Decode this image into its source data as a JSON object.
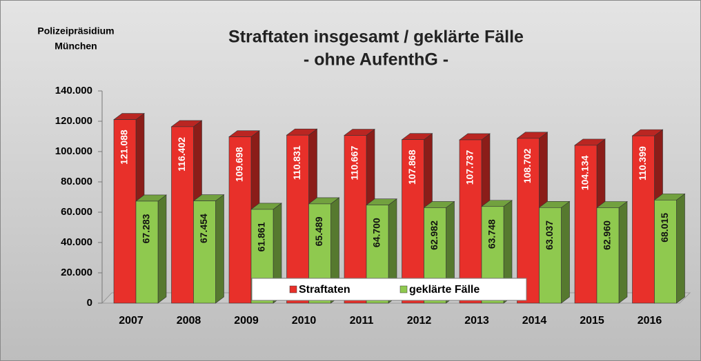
{
  "chart_data": {
    "type": "bar",
    "title": "Straftaten insgesamt / geklärte Fälle",
    "subtitle": "- ohne AufenthG -",
    "annotation": [
      "Polizeipräsidium",
      "München"
    ],
    "categories": [
      "2007",
      "2008",
      "2009",
      "2010",
      "2011",
      "2012",
      "2013",
      "2014",
      "2015",
      "2016"
    ],
    "series": [
      {
        "name": "Straftaten",
        "color": "#e8302a",
        "values": [
          121088,
          116402,
          109698,
          110831,
          110667,
          107868,
          107737,
          108702,
          104134,
          110399
        ],
        "value_labels": [
          "121.088",
          "116.402",
          "109.698",
          "110.831",
          "110.667",
          "107.868",
          "107.737",
          "108.702",
          "104.134",
          "110.399"
        ]
      },
      {
        "name": "geklärte Fälle",
        "color": "#8fc94f",
        "values": [
          67283,
          67454,
          61861,
          65489,
          64700,
          62982,
          63748,
          63037,
          62960,
          68015
        ],
        "value_labels": [
          "67.283",
          "67.454",
          "61.861",
          "65.489",
          "64.700",
          "62.982",
          "63.748",
          "63.037",
          "62.960",
          "68.015"
        ]
      }
    ],
    "ylim": [
      0,
      140000
    ],
    "yticks": [
      0,
      {
        "value": 20000,
        "label": "20.000"
      },
      {
        "value": 40000,
        "label": "40.000"
      },
      {
        "value": 60000,
        "label": "60.000"
      },
      {
        "value": 80000,
        "label": "80.000"
      },
      {
        "value": 100000,
        "label": "100.000"
      },
      {
        "value": 120000,
        "label": "120.000"
      },
      {
        "value": 140000,
        "label": "140.000"
      }
    ],
    "grid": false,
    "legend": "bottom"
  }
}
